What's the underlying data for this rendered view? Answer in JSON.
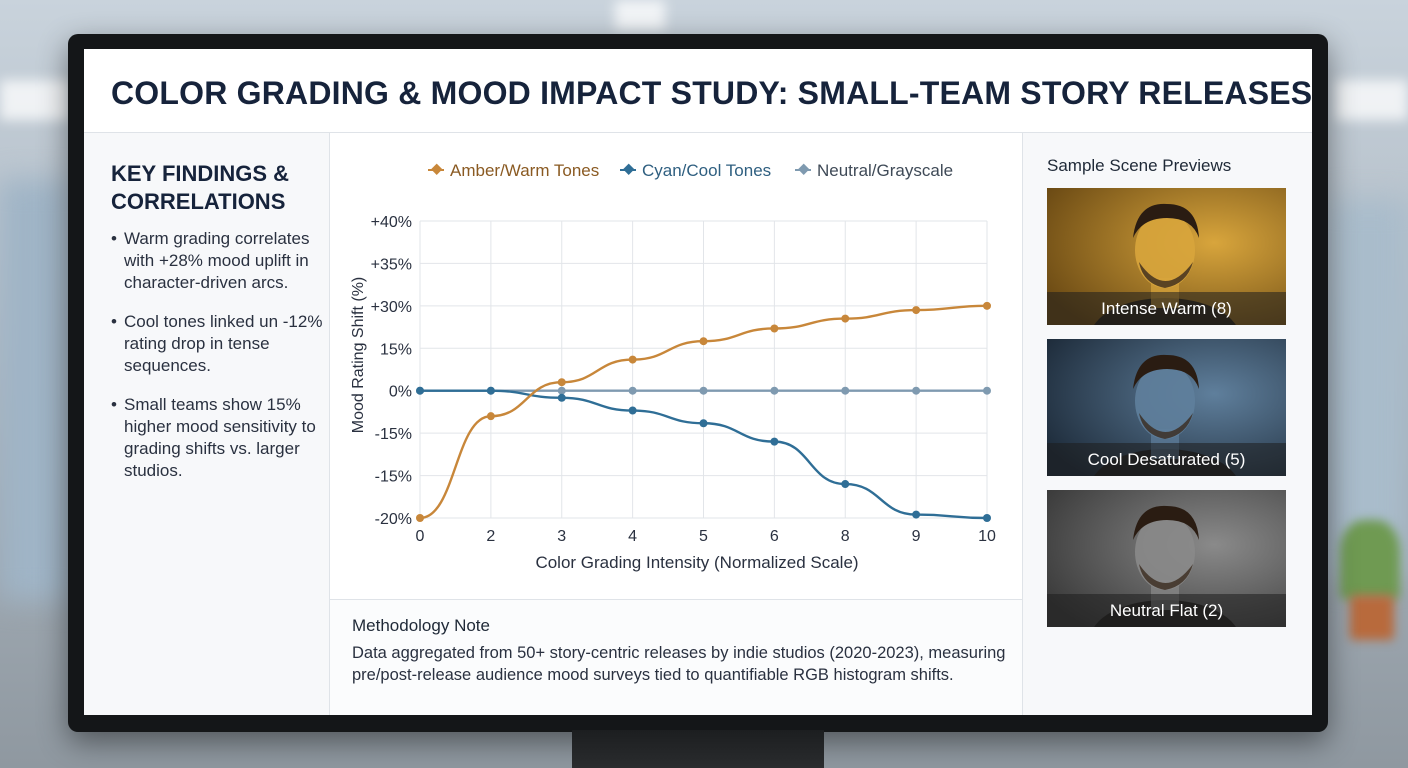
{
  "title": "COLOR GRADING & MOOD IMPACT STUDY: SMALL-TEAM STORY RELEASES",
  "findings": {
    "heading": "KEY FINDINGS & CORRELATIONS",
    "items": [
      "Warm grading correlates with +28% mood uplift in character-driven arcs.",
      "Cool tones linked un -12% rating drop in tense sequences.",
      "Small teams show 15% higher mood sensitivity to grading shifts vs. larger studios."
    ]
  },
  "chart_data": {
    "type": "line",
    "xlabel": "Color Grading Intensity (Normalized Scale)",
    "ylabel": "Mood Rating Shift (%)",
    "x_tick_labels": [
      "0",
      "2",
      "3",
      "4",
      "5",
      "6",
      "8",
      "9",
      "10"
    ],
    "y_tick_labels": [
      "+40%",
      "+35%",
      "+30%",
      "15%",
      "0%",
      "-15%",
      "-15%",
      "-20%"
    ],
    "legend_position": "top",
    "grid": true,
    "series": [
      {
        "name": "Amber/Warm Tones",
        "color": "#c8873a",
        "values": [
          -20,
          -9,
          3,
          11,
          17.5,
          22,
          25.5,
          28.5,
          30
        ]
      },
      {
        "name": "Cyan/Cool Tones",
        "color": "#2f6e96",
        "values": [
          0,
          0,
          -2.5,
          -7,
          -11.5,
          -15.5,
          -18,
          -19.8,
          -21
        ]
      },
      {
        "name": "Neutral/Grayscale",
        "color": "#7f9ab0",
        "values": [
          0,
          0,
          0,
          0,
          0,
          0,
          0,
          0,
          0
        ]
      }
    ]
  },
  "methodology": {
    "title": "Methodology Note",
    "text": "Data aggregated from 50+ story-centric releases by indie studios (2020-2023), measuring pre/post-release audience mood surveys tied to quantifiable RGB histogram shifts."
  },
  "previews": {
    "title": "Sample Scene Previews",
    "items": [
      {
        "caption": "Intense Warm (8)",
        "bg": "#6b4a14",
        "accent": "#d8a53c"
      },
      {
        "caption": "Cool Desaturated (5)",
        "bg": "#1e2c3b",
        "accent": "#5f7f9c"
      },
      {
        "caption": "Neutral Flat (2)",
        "bg": "#3b3b3b",
        "accent": "#8a8a8a"
      }
    ]
  }
}
